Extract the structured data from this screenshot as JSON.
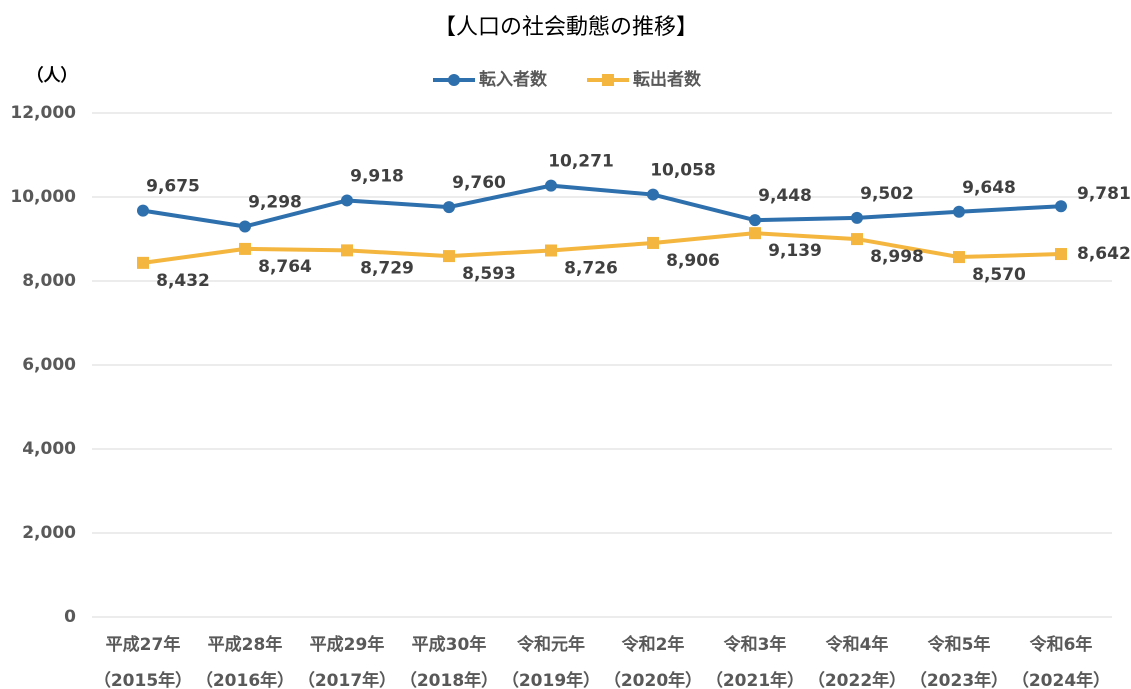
{
  "chart_data": {
    "type": "line",
    "title": "【人口の社会動態の推移】",
    "y_axis_label": "（人）",
    "categories": [
      [
        "平成27年",
        "（2015年）"
      ],
      [
        "平成28年",
        "（2016年）"
      ],
      [
        "平成29年",
        "（2017年）"
      ],
      [
        "平成30年",
        "（2018年）"
      ],
      [
        "令和元年",
        "（2019年）"
      ],
      [
        "令和2年",
        "（2020年）"
      ],
      [
        "令和3年",
        "（2021年）"
      ],
      [
        "令和4年",
        "（2022年）"
      ],
      [
        "令和5年",
        "（2023年）"
      ],
      [
        "令和6年",
        "（2024年）"
      ]
    ],
    "series": [
      {
        "name": "転入者数",
        "color": "#2e6fad",
        "marker": "circle",
        "values": [
          9675,
          9298,
          9918,
          9760,
          10271,
          10058,
          9448,
          9502,
          9648,
          9781
        ],
        "value_labels": [
          "9,675",
          "9,298",
          "9,918",
          "9,760",
          "10,271",
          "10,058",
          "9,448",
          "9,502",
          "9,648",
          "9,781"
        ]
      },
      {
        "name": "転出者数",
        "color": "#f4b63f",
        "marker": "square",
        "values": [
          8432,
          8764,
          8729,
          8593,
          8726,
          8906,
          9139,
          8998,
          8570,
          8642
        ],
        "value_labels": [
          "8,432",
          "8,764",
          "8,729",
          "8,593",
          "8,726",
          "8,906",
          "9,139",
          "8,998",
          "8,570",
          "8,642"
        ]
      }
    ],
    "ylim": [
      0,
      12000
    ],
    "yticks": [
      0,
      {
        "value": 2000,
        "label": "2,000"
      },
      {
        "value": 4000,
        "label": "4,000"
      },
      {
        "value": 6000,
        "label": "6,000"
      },
      {
        "value": 8000,
        "label": "8,000"
      },
      {
        "value": 10000,
        "label": "10,000"
      },
      {
        "value": 12000,
        "label": "12,000"
      }
    ],
    "grid": true,
    "legend": "top"
  }
}
